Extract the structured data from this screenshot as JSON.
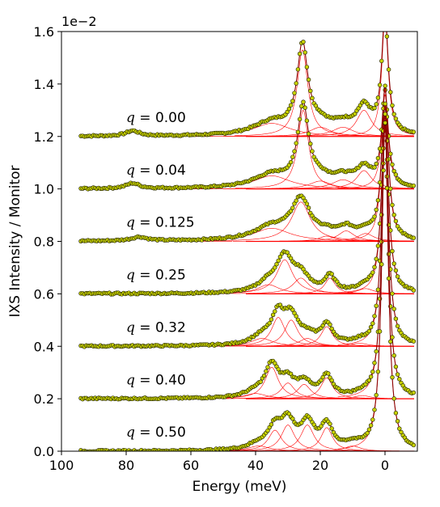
{
  "chart_data": {
    "type": "scatter",
    "xlabel": "Energy (meV)",
    "ylabel": "IXS Intensity / Monitor",
    "scale_label": "1e−2",
    "xlim": [
      100,
      -10
    ],
    "ylim": [
      0.0,
      1.6
    ],
    "x_ticks": [
      100,
      80,
      60,
      40,
      20,
      0
    ],
    "x_tick_labels": [
      "100",
      "80",
      "60",
      "40",
      "20",
      "0"
    ],
    "y_ticks": [
      0.0,
      0.2,
      0.4,
      0.6,
      0.8,
      1.0,
      1.2,
      1.4,
      1.6
    ],
    "y_tick_labels": [
      "0.0",
      "0.2",
      "0.4",
      "0.6",
      "0.8",
      "1.0",
      "1.2",
      "1.4",
      "1.6"
    ],
    "grid": false,
    "colors": {
      "marker_fill": "#c8d200",
      "marker_edge": "#1a1a00",
      "fit_line": "#8b0000",
      "components": "#ff0000"
    },
    "series": [
      {
        "label_prefix": "q",
        "label_value": "0.00",
        "offset": 1.2,
        "label_x": 80,
        "label_y": 1.255,
        "x_min": 94,
        "x_max": -9,
        "elastic": {
          "amp": 0.45,
          "w": 1.2
        },
        "peaks": [
          {
            "e": 25.5,
            "a": 0.33,
            "w": 2.0
          },
          {
            "e": 20,
            "a": 0.035,
            "w": 4
          },
          {
            "e": 13,
            "a": 0.035,
            "w": 4
          },
          {
            "e": 6.5,
            "a": 0.1,
            "w": 2.8
          },
          {
            "e": 35,
            "a": 0.05,
            "w": 7
          },
          {
            "e": 78,
            "a": 0.02,
            "w": 2.5
          }
        ]
      },
      {
        "label_prefix": "q",
        "label_value": "0.04",
        "offset": 1.0,
        "label_x": 80,
        "label_y": 1.055,
        "x_min": 94,
        "x_max": -9,
        "elastic": {
          "amp": 0.36,
          "w": 1.2
        },
        "peaks": [
          {
            "e": 25.3,
            "a": 0.3,
            "w": 2.0
          },
          {
            "e": 20,
            "a": 0.03,
            "w": 4
          },
          {
            "e": 13,
            "a": 0.035,
            "w": 4
          },
          {
            "e": 6.5,
            "a": 0.07,
            "w": 2.8
          },
          {
            "e": 35,
            "a": 0.05,
            "w": 7
          },
          {
            "e": 78,
            "a": 0.02,
            "w": 2.5
          }
        ]
      },
      {
        "label_prefix": "q",
        "label_value": "0.125",
        "offset": 0.8,
        "label_x": 80,
        "label_y": 0.855,
        "x_min": 94,
        "x_max": -9,
        "elastic": {
          "amp": 0.58,
          "w": 1.2
        },
        "peaks": [
          {
            "e": 26,
            "a": 0.15,
            "w": 3.5
          },
          {
            "e": 18,
            "a": 0.02,
            "w": 3
          },
          {
            "e": 12,
            "a": 0.04,
            "w": 3
          },
          {
            "e": 6,
            "a": 0.03,
            "w": 3
          },
          {
            "e": 35,
            "a": 0.05,
            "w": 7
          },
          {
            "e": 76,
            "a": 0.015,
            "w": 3
          }
        ]
      },
      {
        "label_prefix": "q",
        "label_value": "0.25",
        "offset": 0.6,
        "label_x": 80,
        "label_y": 0.655,
        "x_min": 94,
        "x_max": -9,
        "elastic": {
          "amp": 0.72,
          "w": 1.2
        },
        "peaks": [
          {
            "e": 31,
            "a": 0.13,
            "w": 3.0
          },
          {
            "e": 26,
            "a": 0.06,
            "w": 3.0
          },
          {
            "e": 17,
            "a": 0.06,
            "w": 2.0
          },
          {
            "e": 36,
            "a": 0.035,
            "w": 4
          },
          {
            "e": 6,
            "a": 0.02,
            "w": 3
          }
        ]
      },
      {
        "label_prefix": "q",
        "label_value": "0.32",
        "offset": 0.4,
        "label_x": 80,
        "label_y": 0.455,
        "x_min": 94,
        "x_max": -9,
        "elastic": {
          "amp": 0.88,
          "w": 1.2
        },
        "peaks": [
          {
            "e": 33,
            "a": 0.11,
            "w": 2.5
          },
          {
            "e": 29,
            "a": 0.1,
            "w": 2.5
          },
          {
            "e": 24,
            "a": 0.03,
            "w": 3
          },
          {
            "e": 18,
            "a": 0.075,
            "w": 2.2
          },
          {
            "e": 38,
            "a": 0.03,
            "w": 4
          },
          {
            "e": 8,
            "a": 0.012,
            "w": 3
          }
        ]
      },
      {
        "label_prefix": "q",
        "label_value": "0.40",
        "offset": 0.2,
        "label_x": 80,
        "label_y": 0.255,
        "x_min": 94,
        "x_max": -9,
        "elastic": {
          "amp": 1.05,
          "w": 1.2
        },
        "peaks": [
          {
            "e": 35,
            "a": 0.12,
            "w": 2.5
          },
          {
            "e": 30,
            "a": 0.06,
            "w": 2.5
          },
          {
            "e": 25,
            "a": 0.055,
            "w": 2.5
          },
          {
            "e": 18,
            "a": 0.08,
            "w": 2.2
          },
          {
            "e": 40,
            "a": 0.02,
            "w": 4
          },
          {
            "e": 7,
            "a": 0.012,
            "w": 3
          }
        ]
      },
      {
        "label_prefix": "q",
        "label_value": "0.50",
        "offset": 0.0,
        "label_x": 80,
        "label_y": 0.055,
        "x_min": 94,
        "x_max": -9,
        "elastic": {
          "amp": 1.25,
          "w": 1.2
        },
        "peaks": [
          {
            "e": 34,
            "a": 0.08,
            "w": 2.5
          },
          {
            "e": 30,
            "a": 0.1,
            "w": 2.5
          },
          {
            "e": 24,
            "a": 0.1,
            "w": 2.5
          },
          {
            "e": 18,
            "a": 0.09,
            "w": 2.2
          },
          {
            "e": 39,
            "a": 0.02,
            "w": 4
          },
          {
            "e": 10,
            "a": 0.02,
            "w": 3
          }
        ]
      }
    ]
  }
}
